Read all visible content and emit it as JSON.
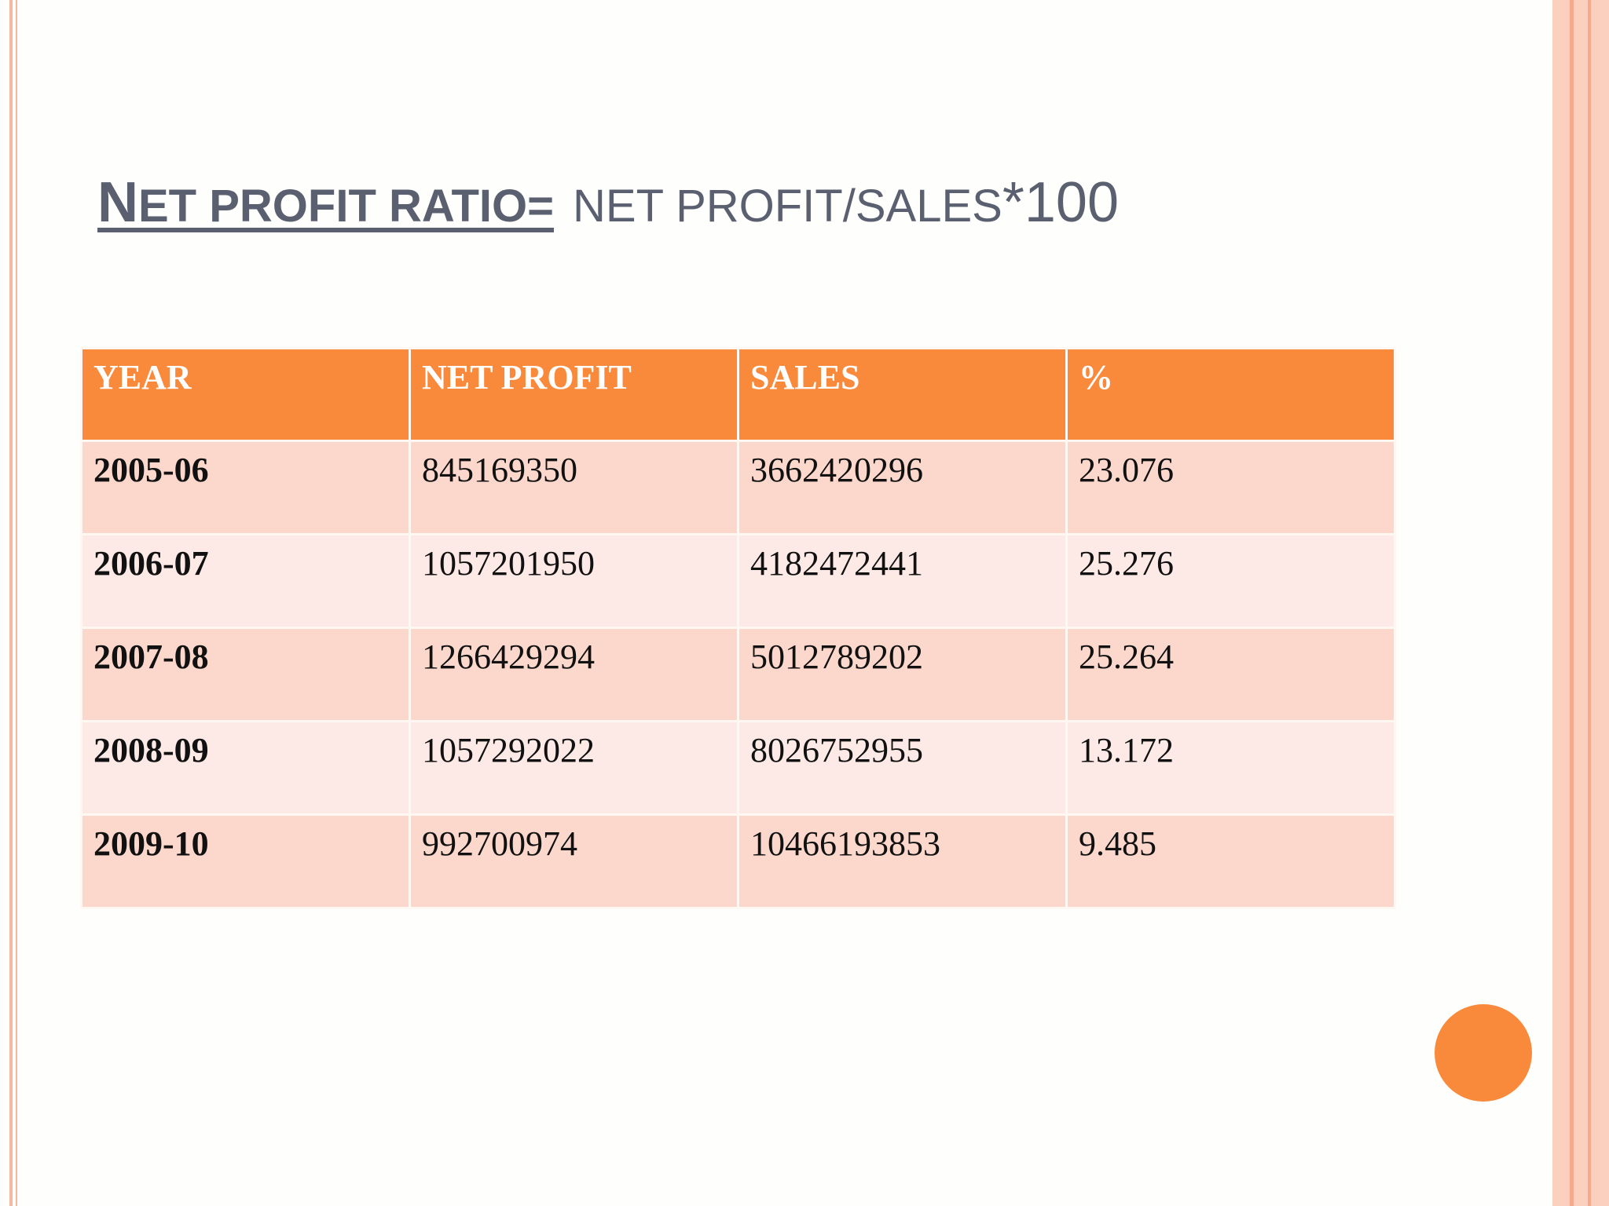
{
  "title": {
    "lead_initial": "N",
    "lead_rest": "ET PROFIT RATIO=",
    "rest_a": "NET PROFIT/",
    "rest_b_initial": "S",
    "rest_b_rest": "ALES",
    "rest_c": "*100"
  },
  "table": {
    "headers": [
      "YEAR",
      "NET PROFIT",
      "SALES",
      "%"
    ],
    "rows": [
      {
        "year": "2005-06",
        "net_profit": "845169350",
        "sales": "3662420296",
        "percent": "23.076"
      },
      {
        "year": "2006-07",
        "net_profit": "1057201950",
        "sales": "4182472441",
        "percent": "25.276"
      },
      {
        "year": "2007-08",
        "net_profit": "1266429294",
        "sales": "5012789202",
        "percent": "25.264"
      },
      {
        "year": "2008-09",
        "net_profit": "1057292022",
        "sales": "8026752955",
        "percent": "13.172"
      },
      {
        "year": "2009-10",
        "net_profit": "992700974",
        "sales": "10466193853",
        "percent": "9.485"
      }
    ]
  },
  "colors": {
    "accent": "#f98a3c",
    "row_odd": "#fcd8cc",
    "row_even": "#fdeae6",
    "title_text": "#5b6070"
  }
}
